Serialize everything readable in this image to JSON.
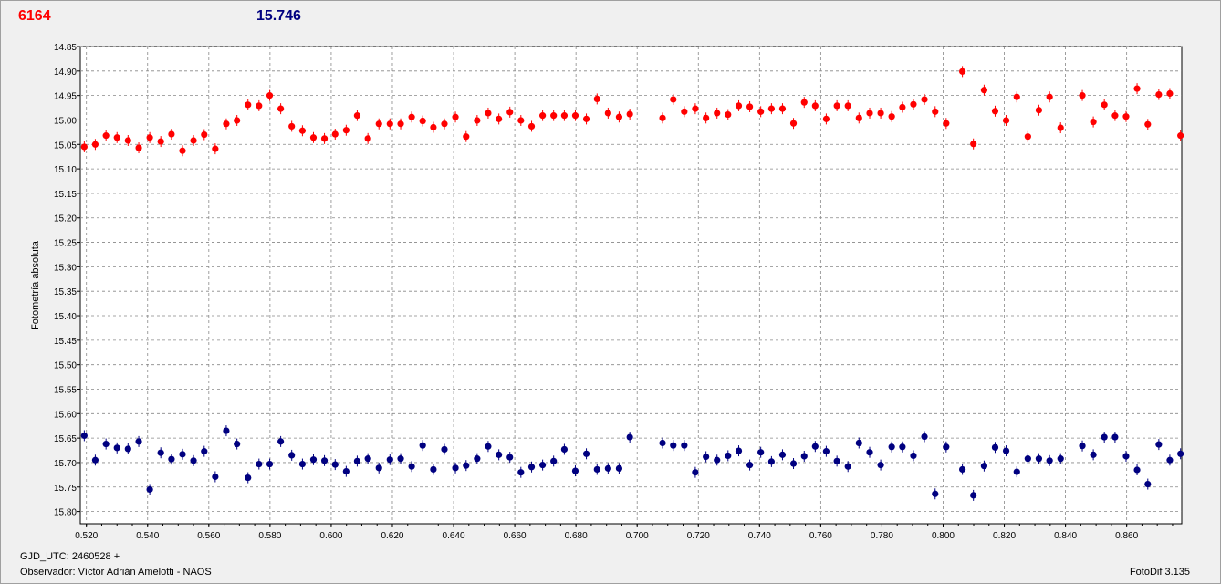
{
  "header": {
    "left_value": "6164",
    "right_value": "15.746",
    "left_color": "#ff0000",
    "right_color": "#000080"
  },
  "footer": {
    "gjd_label": "GJD_UTC: 2460528 +",
    "observer": "Observador: Víctor Adrián Amelotti - NAOS",
    "version": "FotoDif 3.135"
  },
  "chart_data": {
    "type": "scatter",
    "ylabel": "Fotometría absoluta",
    "xlabel": "",
    "xlim": [
      0.518,
      0.878
    ],
    "ylim": [
      15.825,
      14.85
    ],
    "y_inverted": true,
    "grid": true,
    "x_ticks": [
      "0.520",
      "0.540",
      "0.560",
      "0.580",
      "0.600",
      "0.620",
      "0.640",
      "0.660",
      "0.680",
      "0.700",
      "0.720",
      "0.740",
      "0.760",
      "0.780",
      "0.800",
      "0.820",
      "0.840",
      "0.860"
    ],
    "y_ticks": [
      "14.85",
      "14.90",
      "14.95",
      "15.00",
      "15.05",
      "15.10",
      "15.15",
      "15.20",
      "15.25",
      "15.30",
      "15.35",
      "15.40",
      "15.45",
      "15.50",
      "15.55",
      "15.60",
      "15.65",
      "15.70",
      "15.75",
      "15.80"
    ],
    "series": [
      {
        "color": "#ff0000",
        "points": [
          [
            0.5193,
            15.055
          ],
          [
            0.5229,
            15.05
          ],
          [
            0.5264,
            15.032
          ],
          [
            0.53,
            15.036
          ],
          [
            0.5336,
            15.042
          ],
          [
            0.5371,
            15.057
          ],
          [
            0.5407,
            15.036
          ],
          [
            0.5443,
            15.044
          ],
          [
            0.5478,
            15.029
          ],
          [
            0.5514,
            15.063
          ],
          [
            0.555,
            15.042
          ],
          [
            0.5585,
            15.03
          ],
          [
            0.5621,
            15.059
          ],
          [
            0.5657,
            15.008
          ],
          [
            0.5692,
            15.001
          ],
          [
            0.5728,
            14.969
          ],
          [
            0.5764,
            14.971
          ],
          [
            0.5799,
            14.95
          ],
          [
            0.5835,
            14.977
          ],
          [
            0.5871,
            15.013
          ],
          [
            0.5906,
            15.022
          ],
          [
            0.5942,
            15.036
          ],
          [
            0.5978,
            15.038
          ],
          [
            0.6013,
            15.029
          ],
          [
            0.6049,
            15.021
          ],
          [
            0.6085,
            14.991
          ],
          [
            0.612,
            15.038
          ],
          [
            0.6156,
            15.008
          ],
          [
            0.6192,
            15.008
          ],
          [
            0.6227,
            15.008
          ],
          [
            0.6263,
            14.994
          ],
          [
            0.6299,
            15.002
          ],
          [
            0.6334,
            15.015
          ],
          [
            0.637,
            15.008
          ],
          [
            0.6406,
            14.994
          ],
          [
            0.6441,
            15.034
          ],
          [
            0.6477,
            15.001
          ],
          [
            0.6513,
            14.986
          ],
          [
            0.6548,
            14.998
          ],
          [
            0.6584,
            14.984
          ],
          [
            0.662,
            15.001
          ],
          [
            0.6655,
            15.013
          ],
          [
            0.6691,
            14.991
          ],
          [
            0.6727,
            14.991
          ],
          [
            0.6762,
            14.991
          ],
          [
            0.6798,
            14.991
          ],
          [
            0.6834,
            14.998
          ],
          [
            0.6869,
            14.957
          ],
          [
            0.6905,
            14.986
          ],
          [
            0.6941,
            14.994
          ],
          [
            0.6976,
            14.988
          ],
          [
            0.7083,
            14.996
          ],
          [
            0.7118,
            14.958
          ],
          [
            0.7154,
            14.983
          ],
          [
            0.719,
            14.977
          ],
          [
            0.7225,
            14.996
          ],
          [
            0.7261,
            14.986
          ],
          [
            0.7297,
            14.989
          ],
          [
            0.7332,
            14.971
          ],
          [
            0.7368,
            14.973
          ],
          [
            0.7404,
            14.983
          ],
          [
            0.7439,
            14.977
          ],
          [
            0.7475,
            14.977
          ],
          [
            0.7511,
            15.007
          ],
          [
            0.7546,
            14.964
          ],
          [
            0.7582,
            14.971
          ],
          [
            0.7618,
            14.998
          ],
          [
            0.7653,
            14.971
          ],
          [
            0.7689,
            14.971
          ],
          [
            0.7725,
            14.996
          ],
          [
            0.776,
            14.986
          ],
          [
            0.7796,
            14.986
          ],
          [
            0.7832,
            14.993
          ],
          [
            0.7867,
            14.974
          ],
          [
            0.7903,
            14.968
          ],
          [
            0.7939,
            14.958
          ],
          [
            0.7974,
            14.983
          ],
          [
            0.801,
            15.007
          ],
          [
            0.8063,
            14.901
          ],
          [
            0.8099,
            15.049
          ],
          [
            0.8134,
            14.939
          ],
          [
            0.817,
            14.982
          ],
          [
            0.8206,
            15.001
          ],
          [
            0.8241,
            14.953
          ],
          [
            0.8277,
            15.034
          ],
          [
            0.8313,
            14.98
          ],
          [
            0.8348,
            14.953
          ],
          [
            0.8384,
            15.016
          ],
          [
            0.8455,
            14.95
          ],
          [
            0.8491,
            15.004
          ],
          [
            0.8527,
            14.969
          ],
          [
            0.8562,
            14.991
          ],
          [
            0.8598,
            14.993
          ],
          [
            0.8634,
            14.936
          ],
          [
            0.8669,
            15.009
          ],
          [
            0.8705,
            14.948
          ],
          [
            0.8741,
            14.946
          ],
          [
            0.8776,
            15.032
          ]
        ]
      },
      {
        "color": "#000080",
        "points": [
          [
            0.5193,
            15.645
          ],
          [
            0.5229,
            15.695
          ],
          [
            0.5264,
            15.662
          ],
          [
            0.53,
            15.67
          ],
          [
            0.5336,
            15.672
          ],
          [
            0.5371,
            15.657
          ],
          [
            0.5407,
            15.755
          ],
          [
            0.5443,
            15.68
          ],
          [
            0.5478,
            15.693
          ],
          [
            0.5514,
            15.683
          ],
          [
            0.555,
            15.696
          ],
          [
            0.5585,
            15.677
          ],
          [
            0.5621,
            15.729
          ],
          [
            0.5657,
            15.635
          ],
          [
            0.5692,
            15.662
          ],
          [
            0.5728,
            15.731
          ],
          [
            0.5764,
            15.703
          ],
          [
            0.5799,
            15.703
          ],
          [
            0.5835,
            15.657
          ],
          [
            0.5871,
            15.685
          ],
          [
            0.5906,
            15.703
          ],
          [
            0.5942,
            15.694
          ],
          [
            0.5978,
            15.696
          ],
          [
            0.6013,
            15.704
          ],
          [
            0.6049,
            15.718
          ],
          [
            0.6085,
            15.697
          ],
          [
            0.612,
            15.692
          ],
          [
            0.6156,
            15.711
          ],
          [
            0.6192,
            15.694
          ],
          [
            0.6227,
            15.692
          ],
          [
            0.6263,
            15.708
          ],
          [
            0.6299,
            15.665
          ],
          [
            0.6334,
            15.714
          ],
          [
            0.637,
            15.673
          ],
          [
            0.6406,
            15.711
          ],
          [
            0.6441,
            15.706
          ],
          [
            0.6477,
            15.692
          ],
          [
            0.6513,
            15.667
          ],
          [
            0.6548,
            15.684
          ],
          [
            0.6584,
            15.689
          ],
          [
            0.662,
            15.72
          ],
          [
            0.6655,
            15.709
          ],
          [
            0.6691,
            15.705
          ],
          [
            0.6727,
            15.697
          ],
          [
            0.6762,
            15.673
          ],
          [
            0.6798,
            15.717
          ],
          [
            0.6834,
            15.682
          ],
          [
            0.6869,
            15.714
          ],
          [
            0.6905,
            15.712
          ],
          [
            0.6941,
            15.712
          ],
          [
            0.6976,
            15.648
          ],
          [
            0.7083,
            15.66
          ],
          [
            0.7118,
            15.665
          ],
          [
            0.7154,
            15.665
          ],
          [
            0.719,
            15.72
          ],
          [
            0.7225,
            15.688
          ],
          [
            0.7261,
            15.695
          ],
          [
            0.7297,
            15.686
          ],
          [
            0.7332,
            15.676
          ],
          [
            0.7368,
            15.705
          ],
          [
            0.7404,
            15.679
          ],
          [
            0.7439,
            15.698
          ],
          [
            0.7475,
            15.684
          ],
          [
            0.7511,
            15.702
          ],
          [
            0.7546,
            15.687
          ],
          [
            0.7582,
            15.667
          ],
          [
            0.7618,
            15.677
          ],
          [
            0.7653,
            15.697
          ],
          [
            0.7689,
            15.708
          ],
          [
            0.7725,
            15.66
          ],
          [
            0.776,
            15.679
          ],
          [
            0.7796,
            15.705
          ],
          [
            0.7832,
            15.668
          ],
          [
            0.7867,
            15.668
          ],
          [
            0.7903,
            15.686
          ],
          [
            0.7939,
            15.647
          ],
          [
            0.7974,
            15.764
          ],
          [
            0.801,
            15.668
          ],
          [
            0.8063,
            15.714
          ],
          [
            0.8099,
            15.767
          ],
          [
            0.8134,
            15.707
          ],
          [
            0.817,
            15.669
          ],
          [
            0.8206,
            15.676
          ],
          [
            0.8241,
            15.719
          ],
          [
            0.8277,
            15.692
          ],
          [
            0.8313,
            15.692
          ],
          [
            0.8348,
            15.696
          ],
          [
            0.8384,
            15.692
          ],
          [
            0.8455,
            15.666
          ],
          [
            0.8491,
            15.684
          ],
          [
            0.8527,
            15.648
          ],
          [
            0.8562,
            15.648
          ],
          [
            0.8598,
            15.687
          ],
          [
            0.8634,
            15.715
          ],
          [
            0.8669,
            15.744
          ],
          [
            0.8705,
            15.663
          ],
          [
            0.8741,
            15.695
          ],
          [
            0.8776,
            15.682
          ]
        ]
      }
    ]
  }
}
